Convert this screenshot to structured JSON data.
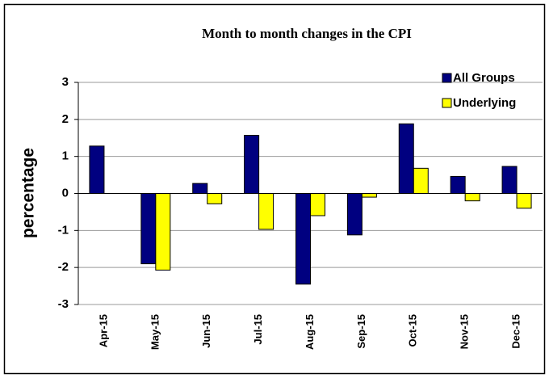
{
  "chart_data": {
    "type": "bar",
    "title": "Month to month changes in the CPI",
    "y_label": "percentage",
    "categories": [
      "Apr-15",
      "May-15",
      "Jun-15",
      "Jul-15",
      "Aug-15",
      "Sep-15",
      "Oct-15",
      "Nov-15",
      "Dec-15"
    ],
    "series": [
      {
        "name": "All Groups",
        "color": "#000080",
        "values": [
          1.28,
          -1.9,
          0.27,
          1.57,
          -2.45,
          -1.12,
          1.88,
          0.46,
          0.73
        ]
      },
      {
        "name": "Underlying",
        "color": "#ffff00",
        "values": [
          null,
          -2.07,
          -0.28,
          -0.97,
          -0.6,
          -0.1,
          0.68,
          -0.2,
          -0.4
        ]
      }
    ],
    "ylim": [
      -3,
      3
    ],
    "yticks": [
      -3,
      -2,
      -1,
      0,
      1,
      2,
      3
    ],
    "grid": true,
    "legend": "top-right"
  }
}
